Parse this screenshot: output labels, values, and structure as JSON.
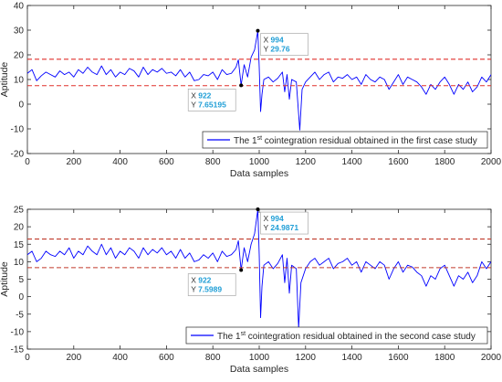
{
  "chart_data": [
    {
      "type": "line",
      "xlabel": "Data samples",
      "ylabel": "Aptitude",
      "xlim": [
        0,
        2000
      ],
      "ylim": [
        -20,
        40
      ],
      "x_ticks": [
        0,
        200,
        400,
        600,
        800,
        1000,
        1200,
        1400,
        1600,
        1800,
        2000
      ],
      "y_ticks": [
        -20,
        -10,
        0,
        10,
        20,
        30,
        40
      ],
      "grid": false,
      "legend_position": "bottom-right",
      "colors": {
        "series": "#0000ff",
        "threshold": "#e0302c",
        "datatip": "#1f9ed6"
      },
      "series": [
        {
          "name": "The 1st cointegration residual obtained in the first case study",
          "name_parts": {
            "before": "The 1",
            "sup": "st",
            "after": " cointegration residual obtained in the first case study"
          },
          "points": [
            [
              0,
              12.5
            ],
            [
              20,
              14
            ],
            [
              40,
              9.5
            ],
            [
              60,
              11.5
            ],
            [
              80,
              13
            ],
            [
              100,
              12
            ],
            [
              120,
              11
            ],
            [
              140,
              13.5
            ],
            [
              160,
              12
            ],
            [
              180,
              13
            ],
            [
              200,
              11
            ],
            [
              220,
              14
            ],
            [
              240,
              12.5
            ],
            [
              260,
              15
            ],
            [
              280,
              13
            ],
            [
              300,
              12
            ],
            [
              320,
              15.5
            ],
            [
              340,
              12
            ],
            [
              360,
              14
            ],
            [
              380,
              11
            ],
            [
              400,
              13
            ],
            [
              420,
              12
            ],
            [
              440,
              14.5
            ],
            [
              460,
              13.5
            ],
            [
              480,
              11
            ],
            [
              500,
              15
            ],
            [
              520,
              12
            ],
            [
              540,
              14
            ],
            [
              560,
              13
            ],
            [
              580,
              14.5
            ],
            [
              600,
              12.5
            ],
            [
              620,
              13
            ],
            [
              640,
              11.5
            ],
            [
              660,
              14
            ],
            [
              680,
              11
            ],
            [
              700,
              13
            ],
            [
              720,
              9.5
            ],
            [
              740,
              10
            ],
            [
              760,
              12
            ],
            [
              780,
              11.5
            ],
            [
              800,
              13
            ],
            [
              820,
              10
            ],
            [
              840,
              14
            ],
            [
              860,
              12
            ],
            [
              880,
              12.5
            ],
            [
              900,
              15
            ],
            [
              910,
              18
            ],
            [
              922,
              7.65195
            ],
            [
              935,
              16
            ],
            [
              950,
              11
            ],
            [
              965,
              19
            ],
            [
              980,
              22
            ],
            [
              994,
              29.76
            ],
            [
              1000,
              15
            ],
            [
              1006,
              -3
            ],
            [
              1012,
              4
            ],
            [
              1020,
              10
            ],
            [
              1040,
              11
            ],
            [
              1060,
              9
            ],
            [
              1080,
              10.5
            ],
            [
              1100,
              13
            ],
            [
              1110,
              5
            ],
            [
              1120,
              12
            ],
            [
              1130,
              2
            ],
            [
              1140,
              10
            ],
            [
              1160,
              9
            ],
            [
              1175,
              -10.5
            ],
            [
              1185,
              6
            ],
            [
              1200,
              9
            ],
            [
              1220,
              11
            ],
            [
              1240,
              13
            ],
            [
              1260,
              10
            ],
            [
              1280,
              12
            ],
            [
              1300,
              13
            ],
            [
              1320,
              9
            ],
            [
              1340,
              11
            ],
            [
              1360,
              10.5
            ],
            [
              1380,
              12
            ],
            [
              1400,
              10
            ],
            [
              1420,
              11
            ],
            [
              1440,
              8
            ],
            [
              1460,
              12
            ],
            [
              1480,
              10
            ],
            [
              1500,
              9
            ],
            [
              1520,
              11
            ],
            [
              1540,
              10
            ],
            [
              1560,
              6
            ],
            [
              1580,
              9
            ],
            [
              1600,
              12
            ],
            [
              1620,
              8
            ],
            [
              1640,
              11
            ],
            [
              1660,
              10
            ],
            [
              1680,
              9
            ],
            [
              1700,
              7
            ],
            [
              1720,
              4
            ],
            [
              1740,
              8
            ],
            [
              1760,
              6
            ],
            [
              1780,
              9
            ],
            [
              1800,
              11
            ],
            [
              1820,
              8
            ],
            [
              1840,
              4
            ],
            [
              1860,
              8
            ],
            [
              1880,
              6
            ],
            [
              1900,
              9
            ],
            [
              1920,
              5
            ],
            [
              1940,
              7
            ],
            [
              1960,
              11
            ],
            [
              1980,
              9
            ],
            [
              2000,
              12
            ]
          ]
        }
      ],
      "thresholds": [
        18.2,
        7.5
      ],
      "datatips": [
        {
          "x": 922,
          "y": 7.65195,
          "x_label": "X",
          "y_label": "Y",
          "x_text": "922",
          "y_text": "7.65195"
        },
        {
          "x": 994,
          "y": 29.76,
          "x_label": "X",
          "y_label": "Y",
          "x_text": "994",
          "y_text": "29.76"
        }
      ]
    },
    {
      "type": "line",
      "xlabel": "Data samples",
      "ylabel": "Aptitude",
      "xlim": [
        0,
        2000
      ],
      "ylim": [
        -15,
        25
      ],
      "x_ticks": [
        0,
        200,
        400,
        600,
        800,
        1000,
        1200,
        1400,
        1600,
        1800,
        2000
      ],
      "y_ticks": [
        -15,
        -10,
        -5,
        0,
        5,
        10,
        15,
        20,
        25
      ],
      "grid": false,
      "legend_position": "bottom-right",
      "colors": {
        "series": "#0000ff",
        "threshold": "#c0392b",
        "datatip": "#1f9ed6"
      },
      "series": [
        {
          "name": "The 1st cointegration residual obtained in the second case study",
          "name_parts": {
            "before": "The 1",
            "sup": "st",
            "after": " cointegration residual obtained in the second case study"
          },
          "points": [
            [
              0,
              12
            ],
            [
              20,
              13
            ],
            [
              40,
              10
            ],
            [
              60,
              11
            ],
            [
              80,
              13
            ],
            [
              100,
              12
            ],
            [
              120,
              11.5
            ],
            [
              140,
              13
            ],
            [
              160,
              12
            ],
            [
              180,
              14
            ],
            [
              200,
              11
            ],
            [
              220,
              13
            ],
            [
              240,
              12
            ],
            [
              260,
              14.5
            ],
            [
              280,
              13
            ],
            [
              300,
              12
            ],
            [
              320,
              15
            ],
            [
              340,
              12
            ],
            [
              360,
              14
            ],
            [
              380,
              11
            ],
            [
              400,
              13
            ],
            [
              420,
              12
            ],
            [
              440,
              14
            ],
            [
              460,
              13
            ],
            [
              480,
              11
            ],
            [
              500,
              14
            ],
            [
              520,
              12
            ],
            [
              540,
              13.5
            ],
            [
              560,
              12.5
            ],
            [
              580,
              14
            ],
            [
              600,
              12
            ],
            [
              620,
              13
            ],
            [
              640,
              11
            ],
            [
              660,
              13.5
            ],
            [
              680,
              11
            ],
            [
              700,
              12.5
            ],
            [
              720,
              10
            ],
            [
              740,
              10.5
            ],
            [
              760,
              12
            ],
            [
              780,
              11
            ],
            [
              800,
              12.5
            ],
            [
              820,
              10
            ],
            [
              840,
              13
            ],
            [
              860,
              11.5
            ],
            [
              880,
              12
            ],
            [
              900,
              13.5
            ],
            [
              910,
              16
            ],
            [
              922,
              7.5989
            ],
            [
              935,
              14
            ],
            [
              950,
              10
            ],
            [
              965,
              15
            ],
            [
              980,
              18
            ],
            [
              994,
              24.9871
            ],
            [
              1000,
              12
            ],
            [
              1006,
              -6
            ],
            [
              1012,
              3
            ],
            [
              1020,
              9
            ],
            [
              1040,
              10
            ],
            [
              1060,
              8
            ],
            [
              1080,
              9.5
            ],
            [
              1100,
              12
            ],
            [
              1110,
              4
            ],
            [
              1120,
              11
            ],
            [
              1130,
              1
            ],
            [
              1140,
              9
            ],
            [
              1160,
              8
            ],
            [
              1170,
              -9
            ],
            [
              1180,
              4
            ],
            [
              1200,
              8
            ],
            [
              1220,
              10
            ],
            [
              1240,
              11
            ],
            [
              1260,
              9
            ],
            [
              1280,
              10
            ],
            [
              1300,
              11
            ],
            [
              1320,
              8
            ],
            [
              1340,
              9.5
            ],
            [
              1360,
              10
            ],
            [
              1380,
              11
            ],
            [
              1400,
              9
            ],
            [
              1420,
              10
            ],
            [
              1440,
              7
            ],
            [
              1460,
              10
            ],
            [
              1480,
              9
            ],
            [
              1500,
              8
            ],
            [
              1520,
              10
            ],
            [
              1540,
              9
            ],
            [
              1560,
              5
            ],
            [
              1580,
              8
            ],
            [
              1600,
              10
            ],
            [
              1620,
              7
            ],
            [
              1640,
              9
            ],
            [
              1660,
              8.5
            ],
            [
              1680,
              7
            ],
            [
              1700,
              6
            ],
            [
              1720,
              3
            ],
            [
              1740,
              6
            ],
            [
              1760,
              5
            ],
            [
              1780,
              8
            ],
            [
              1800,
              9
            ],
            [
              1820,
              6
            ],
            [
              1840,
              3
            ],
            [
              1860,
              6
            ],
            [
              1880,
              5
            ],
            [
              1900,
              7
            ],
            [
              1920,
              4
            ],
            [
              1940,
              6
            ],
            [
              1960,
              10
            ],
            [
              1980,
              8
            ],
            [
              2000,
              10
            ]
          ]
        }
      ],
      "thresholds": [
        16.5,
        8.3
      ],
      "datatips": [
        {
          "x": 922,
          "y": 7.5989,
          "x_label": "X",
          "y_label": "Y",
          "x_text": "922",
          "y_text": "7.5989"
        },
        {
          "x": 994,
          "y": 24.9871,
          "x_label": "X",
          "y_label": "Y",
          "x_text": "994",
          "y_text": "24.9871"
        }
      ]
    }
  ]
}
